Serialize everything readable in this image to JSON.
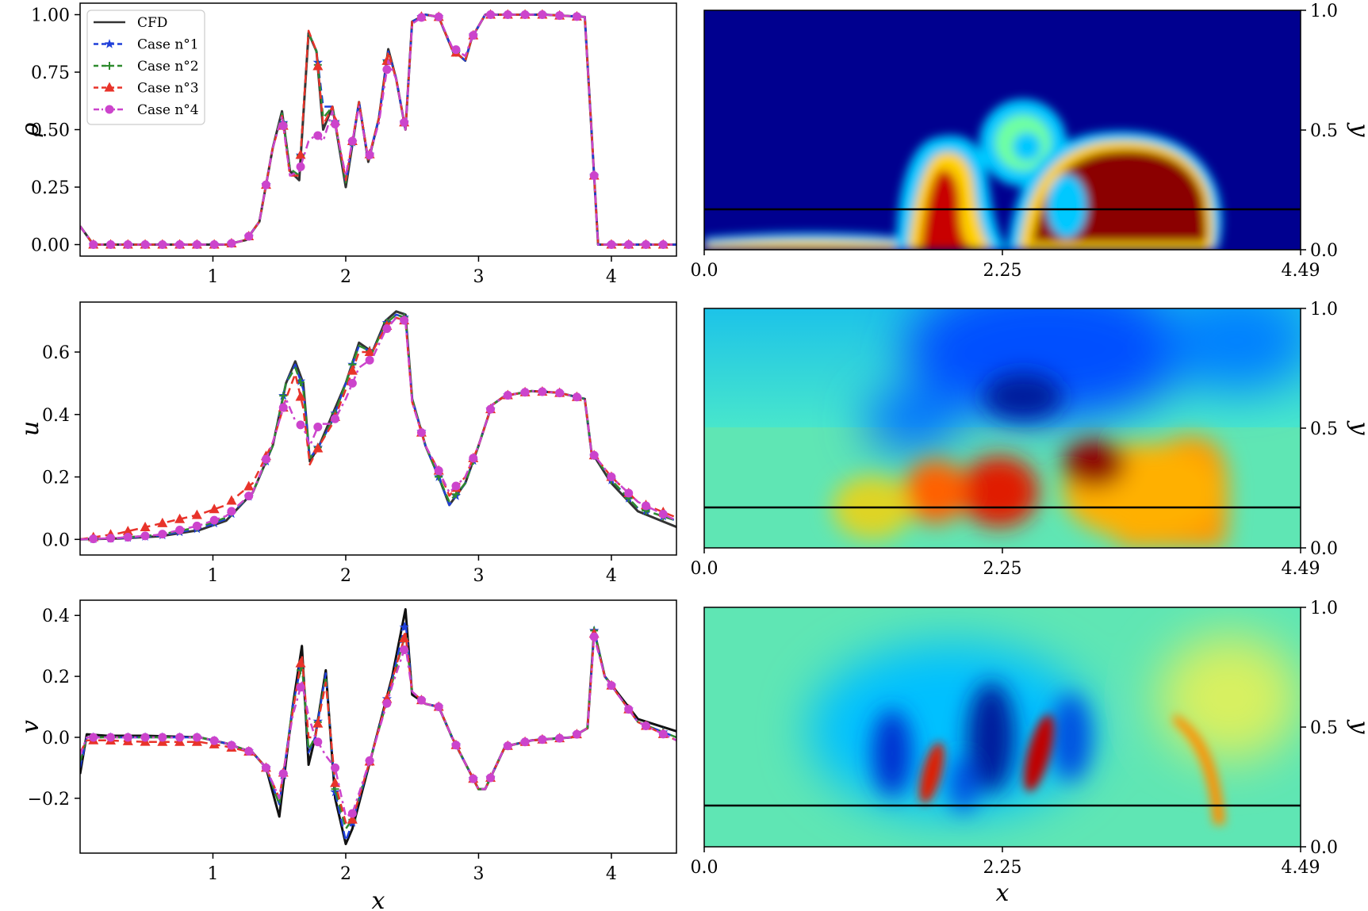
{
  "chart_data": [
    {
      "type": "line",
      "panel": "rho-profile",
      "ylabel": "ρ",
      "xlabel": "",
      "xlim": [
        0,
        4.49
      ],
      "ylim": [
        -0.05,
        1.05
      ],
      "xticks": [
        1,
        2,
        3,
        4
      ],
      "yticks": [
        0.0,
        0.25,
        0.5,
        0.75,
        1.0
      ],
      "ytick_labels": [
        "0.00",
        "0.25",
        "0.50",
        "0.75",
        "1.00"
      ],
      "legend_position": "top-left",
      "x": [
        0.0,
        0.1,
        0.3,
        0.6,
        0.9,
        1.1,
        1.25,
        1.35,
        1.45,
        1.52,
        1.58,
        1.65,
        1.72,
        1.78,
        1.83,
        1.9,
        2.0,
        2.1,
        2.17,
        2.25,
        2.32,
        2.38,
        2.45,
        2.5,
        2.6,
        2.7,
        2.8,
        2.9,
        2.95,
        3.05,
        3.2,
        3.5,
        3.8,
        3.85,
        3.9,
        4.2,
        4.49
      ],
      "series": [
        {
          "name": "CFD",
          "color": "#333333",
          "dash": "solid",
          "marker": "none",
          "values": [
            0.08,
            0.0,
            0.0,
            0.0,
            0.0,
            0.0,
            0.02,
            0.1,
            0.42,
            0.58,
            0.32,
            0.28,
            0.92,
            0.84,
            0.5,
            0.6,
            0.25,
            0.62,
            0.36,
            0.55,
            0.85,
            0.72,
            0.5,
            0.97,
            1.0,
            0.99,
            0.85,
            0.8,
            0.9,
            1.0,
            1.0,
            1.0,
            0.99,
            0.5,
            0.0,
            0.0,
            0.0
          ]
        },
        {
          "name": "Case n°1",
          "color": "#1f3fd9",
          "dash": "dashed",
          "marker": "star",
          "values": [
            0.08,
            0.0,
            0.0,
            0.0,
            0.0,
            0.0,
            0.02,
            0.1,
            0.42,
            0.57,
            0.33,
            0.3,
            0.92,
            0.84,
            0.6,
            0.6,
            0.27,
            0.62,
            0.37,
            0.55,
            0.84,
            0.72,
            0.5,
            0.97,
            1.0,
            0.99,
            0.85,
            0.8,
            0.9,
            1.0,
            1.0,
            1.0,
            0.99,
            0.5,
            0.0,
            0.0,
            0.0
          ]
        },
        {
          "name": "Case n°2",
          "color": "#2e8b2e",
          "dash": "dashed",
          "marker": "plus",
          "values": [
            0.08,
            0.0,
            0.0,
            0.0,
            0.0,
            0.0,
            0.02,
            0.1,
            0.42,
            0.57,
            0.33,
            0.3,
            0.92,
            0.84,
            0.55,
            0.6,
            0.27,
            0.62,
            0.37,
            0.55,
            0.84,
            0.72,
            0.5,
            0.97,
            1.0,
            0.99,
            0.85,
            0.8,
            0.9,
            1.0,
            1.0,
            1.0,
            0.99,
            0.5,
            0.0,
            0.0,
            0.0
          ]
        },
        {
          "name": "Case n°3",
          "color": "#e8332a",
          "dash": "dashed",
          "marker": "triangle",
          "values": [
            0.08,
            0.0,
            0.0,
            0.0,
            0.0,
            0.0,
            0.02,
            0.1,
            0.42,
            0.56,
            0.3,
            0.3,
            0.93,
            0.84,
            0.52,
            0.6,
            0.28,
            0.62,
            0.37,
            0.55,
            0.84,
            0.72,
            0.5,
            0.97,
            1.0,
            0.99,
            0.85,
            0.8,
            0.9,
            1.0,
            1.0,
            1.0,
            0.99,
            0.5,
            0.0,
            0.0,
            0.0
          ]
        },
        {
          "name": "Case n°4",
          "color": "#cc44cc",
          "dash": "dashdot",
          "marker": "circle",
          "values": [
            0.08,
            0.0,
            0.0,
            0.0,
            0.0,
            0.0,
            0.02,
            0.1,
            0.42,
            0.56,
            0.3,
            0.32,
            0.45,
            0.48,
            0.45,
            0.58,
            0.3,
            0.6,
            0.37,
            0.53,
            0.8,
            0.72,
            0.5,
            0.96,
            1.0,
            0.99,
            0.86,
            0.82,
            0.9,
            1.0,
            1.0,
            1.0,
            0.99,
            0.5,
            0.0,
            0.0,
            0.0
          ]
        }
      ]
    },
    {
      "type": "heatmap",
      "panel": "rho-field",
      "xlabel": "",
      "ylabel": "y",
      "xlim": [
        0.0,
        4.49
      ],
      "ylim": [
        0.0,
        1.0
      ],
      "xtick_labels": [
        "0.0",
        "2.25",
        "4.49"
      ],
      "ytick_labels": [
        "0.0",
        "0.5",
        "1.0"
      ],
      "colormap": "jet",
      "slice_line_y": 0.17,
      "background_color": "#00008f"
    },
    {
      "type": "line",
      "panel": "u-profile",
      "ylabel": "u",
      "xlabel": "",
      "xlim": [
        0,
        4.49
      ],
      "ylim": [
        -0.05,
        0.76
      ],
      "xticks": [
        1,
        2,
        3,
        4
      ],
      "yticks": [
        0.0,
        0.2,
        0.4,
        0.6
      ],
      "ytick_labels": [
        "0.0",
        "0.2",
        "0.4",
        "0.6"
      ],
      "x": [
        0.0,
        0.3,
        0.6,
        0.9,
        1.1,
        1.3,
        1.45,
        1.55,
        1.62,
        1.68,
        1.73,
        1.8,
        1.9,
        2.0,
        2.1,
        2.2,
        2.3,
        2.38,
        2.45,
        2.5,
        2.6,
        2.7,
        2.78,
        2.9,
        3.0,
        3.1,
        3.2,
        3.4,
        3.6,
        3.8,
        3.85,
        4.0,
        4.2,
        4.49
      ],
      "series": [
        {
          "name": "CFD",
          "color": "#333333",
          "dash": "solid",
          "marker": "none",
          "values": [
            0.0,
            0.003,
            0.01,
            0.03,
            0.06,
            0.15,
            0.3,
            0.5,
            0.57,
            0.5,
            0.25,
            0.3,
            0.4,
            0.5,
            0.63,
            0.6,
            0.7,
            0.73,
            0.72,
            0.45,
            0.3,
            0.2,
            0.11,
            0.18,
            0.3,
            0.43,
            0.46,
            0.475,
            0.47,
            0.45,
            0.28,
            0.18,
            0.09,
            0.04
          ]
        },
        {
          "name": "Case n°1",
          "color": "#1f3fd9",
          "dash": "dashed",
          "marker": "star",
          "values": [
            0.0,
            0.004,
            0.012,
            0.035,
            0.065,
            0.15,
            0.3,
            0.5,
            0.56,
            0.48,
            0.26,
            0.3,
            0.38,
            0.5,
            0.62,
            0.6,
            0.69,
            0.72,
            0.71,
            0.45,
            0.3,
            0.2,
            0.11,
            0.18,
            0.3,
            0.43,
            0.46,
            0.475,
            0.47,
            0.45,
            0.28,
            0.19,
            0.1,
            0.06
          ]
        },
        {
          "name": "Case n°2",
          "color": "#2e8b2e",
          "dash": "dashed",
          "marker": "plus",
          "values": [
            0.0,
            0.005,
            0.015,
            0.04,
            0.07,
            0.15,
            0.3,
            0.5,
            0.55,
            0.48,
            0.26,
            0.3,
            0.38,
            0.5,
            0.62,
            0.6,
            0.69,
            0.72,
            0.71,
            0.45,
            0.3,
            0.2,
            0.12,
            0.18,
            0.3,
            0.43,
            0.46,
            0.475,
            0.47,
            0.45,
            0.28,
            0.19,
            0.1,
            0.06
          ]
        },
        {
          "name": "Case n°3",
          "color": "#e8332a",
          "dash": "dashed",
          "marker": "triangle",
          "values": [
            0.0,
            0.02,
            0.05,
            0.08,
            0.11,
            0.18,
            0.31,
            0.45,
            0.53,
            0.42,
            0.24,
            0.3,
            0.37,
            0.48,
            0.6,
            0.6,
            0.68,
            0.71,
            0.7,
            0.44,
            0.3,
            0.22,
            0.14,
            0.2,
            0.3,
            0.43,
            0.46,
            0.475,
            0.47,
            0.45,
            0.28,
            0.2,
            0.12,
            0.07
          ]
        },
        {
          "name": "Case n°4",
          "color": "#cc44cc",
          "dash": "dashdot",
          "marker": "circle",
          "values": [
            0.0,
            0.005,
            0.015,
            0.045,
            0.075,
            0.15,
            0.31,
            0.45,
            0.38,
            0.36,
            0.3,
            0.37,
            0.37,
            0.45,
            0.55,
            0.58,
            0.67,
            0.71,
            0.7,
            0.44,
            0.3,
            0.22,
            0.15,
            0.2,
            0.3,
            0.43,
            0.46,
            0.475,
            0.47,
            0.45,
            0.28,
            0.2,
            0.12,
            0.06
          ]
        }
      ]
    },
    {
      "type": "heatmap",
      "panel": "u-field",
      "xlabel": "",
      "ylabel": "y",
      "xlim": [
        0.0,
        4.49
      ],
      "ylim": [
        0.0,
        1.0
      ],
      "xtick_labels": [
        "0.0",
        "2.25",
        "4.49"
      ],
      "ytick_labels": [
        "0.0",
        "0.5",
        "1.0"
      ],
      "colormap": "jet",
      "slice_line_y": 0.17,
      "background_color": "#5fe6b4"
    },
    {
      "type": "line",
      "panel": "v-profile",
      "ylabel": "v",
      "xlabel": "x",
      "xlim": [
        0,
        4.49
      ],
      "ylim": [
        -0.38,
        0.45
      ],
      "xticks": [
        1,
        2,
        3,
        4
      ],
      "yticks": [
        -0.2,
        0.0,
        0.2,
        0.4
      ],
      "ytick_labels": [
        "−0.2",
        "0.0",
        "0.2",
        "0.4"
      ],
      "x": [
        0.0,
        0.05,
        0.2,
        0.5,
        0.9,
        1.1,
        1.3,
        1.4,
        1.5,
        1.6,
        1.67,
        1.72,
        1.77,
        1.85,
        1.92,
        2.0,
        2.05,
        2.2,
        2.35,
        2.45,
        2.5,
        2.6,
        2.7,
        2.8,
        3.0,
        3.05,
        3.2,
        3.4,
        3.7,
        3.82,
        3.87,
        3.95,
        4.2,
        4.49
      ],
      "series": [
        {
          "name": "CFD",
          "color": "#111111",
          "dash": "solid",
          "marker": "none",
          "values": [
            -0.12,
            0.01,
            0.005,
            0.005,
            0.0,
            -0.02,
            -0.05,
            -0.1,
            -0.26,
            0.1,
            0.3,
            -0.09,
            0.0,
            0.22,
            -0.2,
            -0.35,
            -0.3,
            -0.05,
            0.2,
            0.42,
            0.14,
            0.11,
            0.1,
            0.0,
            -0.17,
            -0.17,
            -0.03,
            -0.01,
            0.0,
            0.03,
            0.35,
            0.2,
            0.06,
            0.02
          ]
        },
        {
          "name": "Case n°1",
          "color": "#1f3fd9",
          "dash": "dashed",
          "marker": "star",
          "values": [
            -0.1,
            0.0,
            0.0,
            0.0,
            0.0,
            -0.02,
            -0.05,
            -0.1,
            -0.22,
            0.1,
            0.25,
            -0.05,
            0.0,
            0.21,
            -0.18,
            -0.34,
            -0.28,
            -0.05,
            0.19,
            0.38,
            0.15,
            0.11,
            0.1,
            0.0,
            -0.17,
            -0.17,
            -0.03,
            -0.01,
            0.0,
            0.03,
            0.35,
            0.2,
            0.05,
            0.0
          ]
        },
        {
          "name": "Case n°2",
          "color": "#2e8b2e",
          "dash": "dashed",
          "marker": "plus",
          "values": [
            -0.08,
            0.0,
            0.0,
            0.0,
            0.0,
            -0.02,
            -0.05,
            -0.1,
            -0.22,
            0.1,
            0.24,
            -0.04,
            0.0,
            0.2,
            -0.17,
            -0.3,
            -0.27,
            -0.05,
            0.18,
            0.34,
            0.15,
            0.11,
            0.1,
            0.0,
            -0.17,
            -0.17,
            -0.03,
            -0.01,
            0.0,
            0.03,
            0.35,
            0.2,
            0.05,
            0.0
          ]
        },
        {
          "name": "Case n°3",
          "color": "#e8332a",
          "dash": "dashed",
          "marker": "triangle",
          "values": [
            -0.05,
            -0.01,
            -0.01,
            -0.015,
            -0.015,
            -0.03,
            -0.05,
            -0.1,
            -0.2,
            0.08,
            0.27,
            0.0,
            0.0,
            0.18,
            -0.15,
            -0.28,
            -0.27,
            -0.05,
            0.19,
            0.34,
            0.15,
            0.11,
            0.1,
            0.0,
            -0.17,
            -0.17,
            -0.03,
            -0.01,
            0.0,
            0.03,
            0.34,
            0.2,
            0.05,
            -0.01
          ]
        },
        {
          "name": "Case n°4",
          "color": "#cc44cc",
          "dash": "dashdot",
          "marker": "circle",
          "values": [
            -0.06,
            0.0,
            0.0,
            0.0,
            0.0,
            -0.02,
            -0.05,
            -0.1,
            -0.2,
            0.07,
            0.18,
            0.07,
            0.0,
            -0.06,
            -0.1,
            -0.26,
            -0.25,
            -0.05,
            0.17,
            0.3,
            0.15,
            0.11,
            0.1,
            0.0,
            -0.17,
            -0.17,
            -0.03,
            -0.01,
            0.0,
            0.03,
            0.33,
            0.2,
            0.05,
            -0.01
          ]
        }
      ]
    },
    {
      "type": "heatmap",
      "panel": "v-field",
      "xlabel": "x",
      "ylabel": "y",
      "xlim": [
        0.0,
        4.49
      ],
      "ylim": [
        0.0,
        1.0
      ],
      "xtick_labels": [
        "0.0",
        "2.25",
        "4.49"
      ],
      "ytick_labels": [
        "0.0",
        "0.5",
        "1.0"
      ],
      "colormap": "jet",
      "slice_line_y": 0.17,
      "background_color": "#5fe6b4"
    }
  ]
}
